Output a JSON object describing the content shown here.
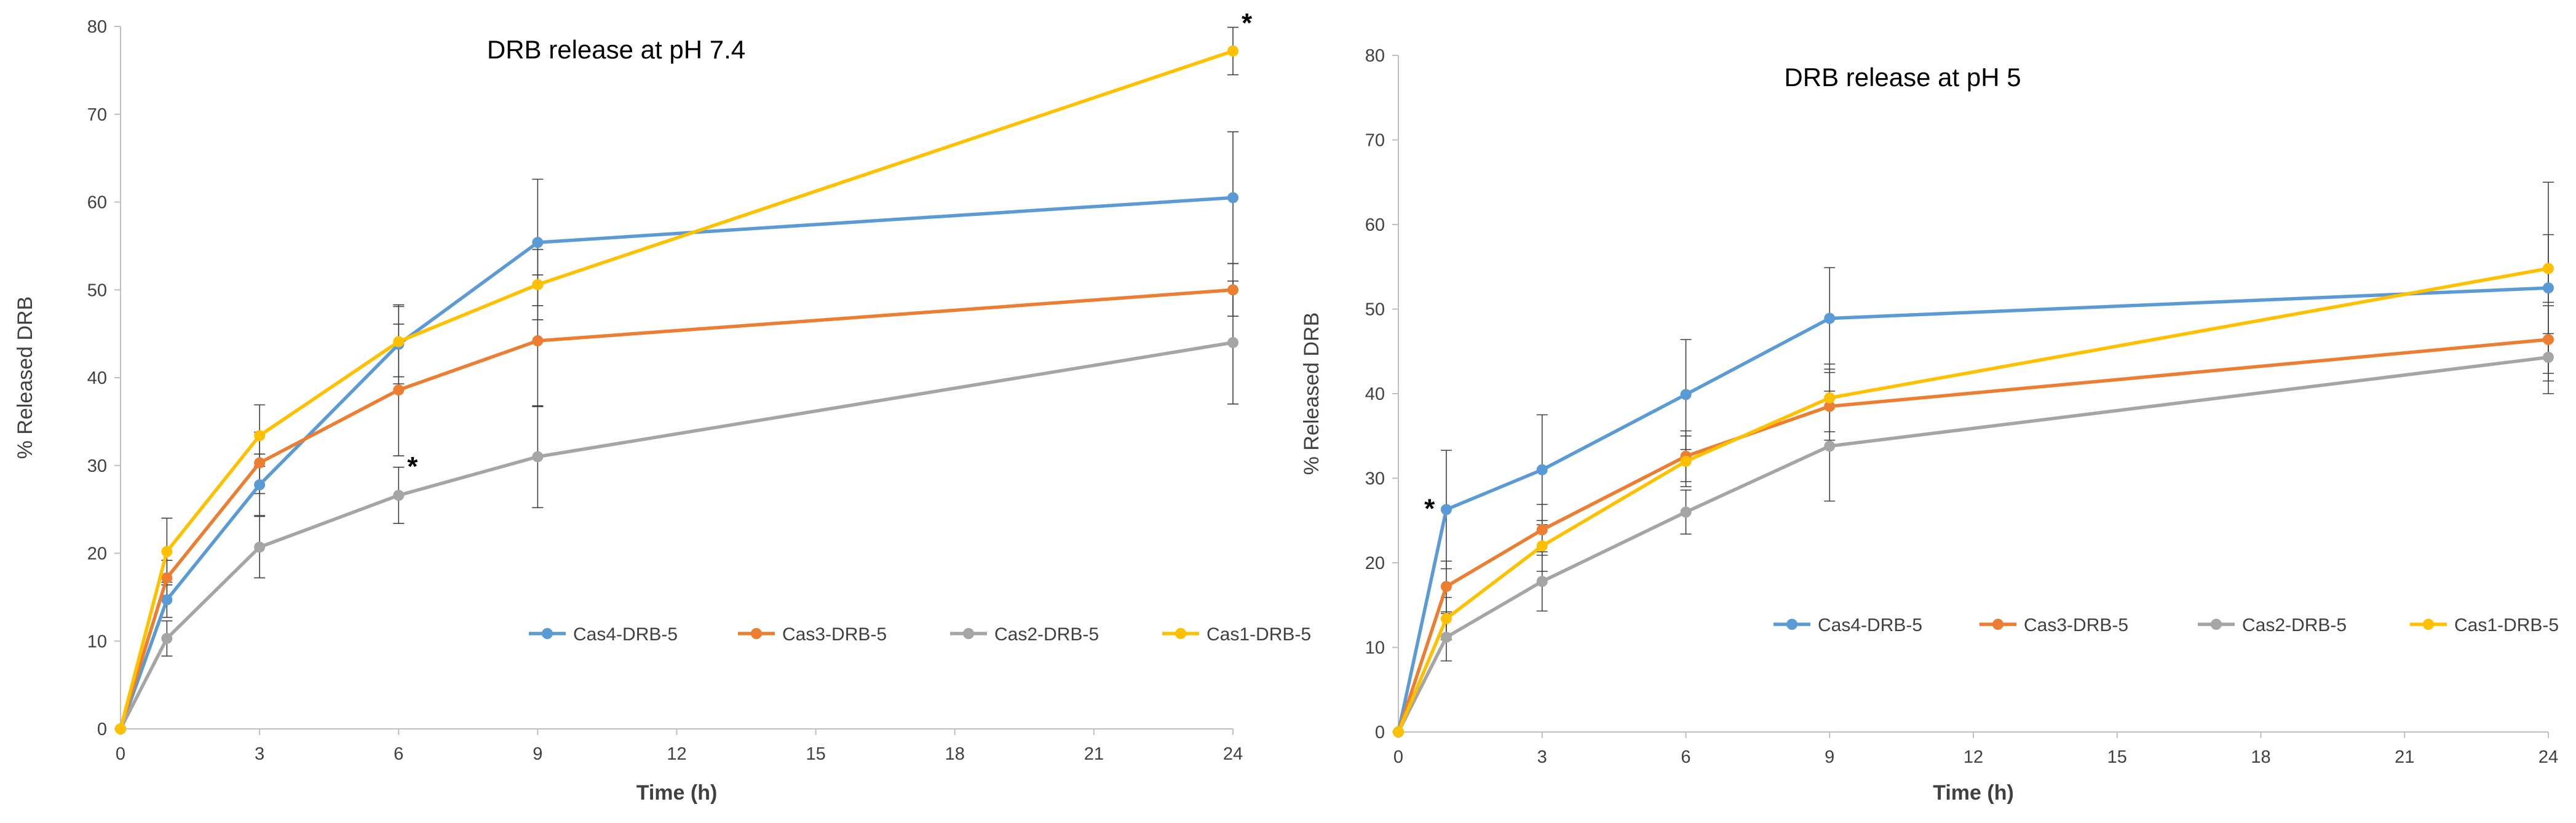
{
  "chart_data": [
    {
      "type": "line",
      "title": "DRB release at pH 7.4",
      "xlabel": "Time (h)",
      "ylabel": "% Released DRB",
      "xlim": [
        0,
        24
      ],
      "ylim": [
        0,
        80
      ],
      "xticks": [
        0,
        3,
        6,
        9,
        12,
        15,
        18,
        21,
        24
      ],
      "yticks": [
        0,
        10,
        20,
        30,
        40,
        50,
        60,
        70,
        80
      ],
      "grid": false,
      "legend_position": "lower-right",
      "x": [
        0,
        1,
        3,
        6,
        9,
        24
      ],
      "series": [
        {
          "name": "Cas4-DRB-5",
          "color": "#5b9bd5",
          "values": [
            0,
            14.7,
            27.8,
            43.8,
            55.4,
            60.5
          ],
          "errors": [
            0,
            2.0,
            3.5,
            4.5,
            7.2,
            7.5
          ]
        },
        {
          "name": "Cas3-DRB-5",
          "color": "#ed7d31",
          "values": [
            0,
            17.2,
            30.3,
            38.6,
            44.2,
            50.0
          ],
          "errors": [
            0,
            2.0,
            3.5,
            7.5,
            7.5,
            3.0
          ]
        },
        {
          "name": "Cas2-DRB-5",
          "color": "#a5a5a5",
          "values": [
            0,
            10.3,
            20.7,
            26.6,
            31.0,
            44.0
          ],
          "errors": [
            0,
            2.0,
            3.5,
            3.2,
            5.8,
            7.0
          ]
        },
        {
          "name": "Cas1-DRB-5",
          "color": "#ffc000",
          "values": [
            0,
            20.2,
            33.4,
            44.1,
            50.6,
            77.2
          ],
          "errors": [
            0,
            3.8,
            3.5,
            4.0,
            4.0,
            2.7
          ]
        }
      ],
      "annotations": [
        {
          "text": "*",
          "x": 6.3,
          "y": 30
        },
        {
          "text": "*",
          "x": 24.3,
          "y": 80.5
        }
      ]
    },
    {
      "type": "line",
      "title": "DRB release at pH 5",
      "xlabel": "Time (h)",
      "ylabel": "% Released DRB",
      "xlim": [
        0,
        24
      ],
      "ylim": [
        0,
        80
      ],
      "xticks": [
        0,
        3,
        6,
        9,
        12,
        15,
        18,
        21,
        24
      ],
      "yticks": [
        0,
        10,
        20,
        30,
        40,
        50,
        60,
        70,
        80
      ],
      "grid": false,
      "legend_position": "lower-right",
      "x": [
        0,
        1,
        3,
        6,
        9,
        24
      ],
      "series": [
        {
          "name": "Cas4-DRB-5",
          "color": "#5b9bd5",
          "values": [
            0,
            26.3,
            31.0,
            39.9,
            48.9,
            52.5
          ],
          "errors": [
            0,
            7.0,
            6.5,
            6.5,
            6.0,
            12.5
          ]
        },
        {
          "name": "Cas3-DRB-5",
          "color": "#ed7d31",
          "values": [
            0,
            17.2,
            23.9,
            32.6,
            38.5,
            46.4
          ],
          "errors": [
            0,
            3.0,
            3.0,
            3.0,
            4.0,
            4.0
          ]
        },
        {
          "name": "Cas2-DRB-5",
          "color": "#a5a5a5",
          "values": [
            0,
            11.2,
            17.8,
            26.0,
            33.8,
            44.3
          ],
          "errors": [
            0,
            2.8,
            3.5,
            2.6,
            6.5,
            2.8
          ]
        },
        {
          "name": "Cas1-DRB-5",
          "color": "#ffc000",
          "values": [
            0,
            13.4,
            22.0,
            32.0,
            39.5,
            54.8
          ],
          "errors": [
            0,
            2.5,
            3.0,
            3.0,
            4.0,
            4.0
          ]
        }
      ],
      "annotations": [
        {
          "text": "*",
          "x": 0.65,
          "y": 26.5
        }
      ]
    }
  ]
}
